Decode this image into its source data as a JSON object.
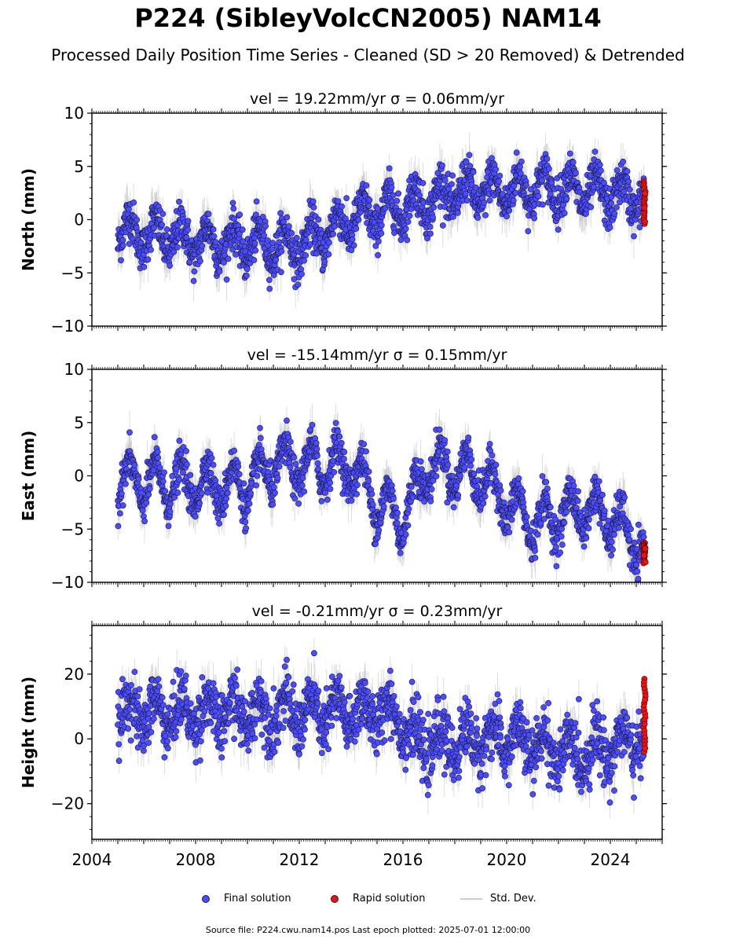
{
  "title": "P224 (SibleyVolcCN2005) NAM14",
  "subtitle": "Processed Daily Position Time Series - Cleaned (SD > 20 Removed) & Detrended",
  "legend": {
    "final": "Final solution",
    "rapid": "Rapid solution",
    "std": "Std. Dev."
  },
  "source": "Source file: P224.cwu.nam14.pos  Last epoch plotted: 2025-07-01 12:00:00",
  "colors": {
    "final": "#4b4bff",
    "rapid": "#ee1111",
    "std_dev": "#bbbbbb",
    "edge": "#1a1a3a"
  },
  "chart_data": [
    {
      "type": "scatter",
      "panel_title": "vel = 19.22mm/yr   σ = 0.06mm/yr",
      "ylabel": "North (mm)",
      "xlim": [
        2004,
        2026
      ],
      "ylim": [
        -10,
        10
      ],
      "yticks": [
        -10,
        -5,
        0,
        5,
        10
      ],
      "data_start": 2005.0,
      "rapid_start": 2025.3,
      "rapid_end": 2025.5,
      "final_trend": [
        [
          2005.0,
          -1.0
        ],
        [
          2008.0,
          -2.0
        ],
        [
          2012.0,
          -2.5
        ],
        [
          2014.0,
          0.0
        ],
        [
          2016.0,
          1.2
        ],
        [
          2018.0,
          2.5
        ],
        [
          2022.0,
          3.0
        ],
        [
          2025.3,
          2.0
        ]
      ],
      "final_seasonal_amp": 1.5,
      "final_noise": 1.0,
      "rapid_range": [
        -0.4,
        3.6
      ],
      "std_dev_typical": 1.5
    },
    {
      "type": "scatter",
      "panel_title": "vel = -15.14mm/yr   σ = 0.15mm/yr",
      "ylabel": "East (mm)",
      "xlim": [
        2004,
        2026
      ],
      "ylim": [
        -10,
        10
      ],
      "yticks": [
        -10,
        -5,
        0,
        5,
        10
      ],
      "data_start": 2005.0,
      "rapid_start": 2025.3,
      "rapid_end": 2025.5,
      "final_trend": [
        [
          2005.0,
          -0.5
        ],
        [
          2010.0,
          -1.0
        ],
        [
          2011.0,
          1.0
        ],
        [
          2014.0,
          1.0
        ],
        [
          2015.0,
          -2.5
        ],
        [
          2016.0,
          -4.0
        ],
        [
          2017.0,
          1.0
        ],
        [
          2019.0,
          0.0
        ],
        [
          2020.0,
          -2.5
        ],
        [
          2021.0,
          -4.5
        ],
        [
          2023.0,
          -3.0
        ],
        [
          2024.0,
          -4.0
        ],
        [
          2025.3,
          -7.0
        ]
      ],
      "final_seasonal_amp": 2.0,
      "final_noise": 0.9,
      "rapid_range": [
        -8.2,
        -6.3
      ],
      "std_dev_typical": 1.5
    },
    {
      "type": "scatter",
      "panel_title": "vel = -0.21mm/yr   σ = 0.23mm/yr",
      "ylabel": "Height (mm)",
      "xlim": [
        2004,
        2026
      ],
      "ylim": [
        -31,
        35
      ],
      "yticks": [
        -20,
        0,
        20
      ],
      "xticks": [
        2004,
        2008,
        2012,
        2016,
        2020,
        2024
      ],
      "data_start": 2005.0,
      "rapid_start": 2025.3,
      "rapid_end": 2025.5,
      "final_trend": [
        [
          2005.0,
          8.0
        ],
        [
          2015.8,
          8.0
        ],
        [
          2016.5,
          -2.0
        ],
        [
          2020.0,
          0.0
        ],
        [
          2022.5,
          -5.0
        ],
        [
          2025.3,
          0.0
        ]
      ],
      "final_seasonal_amp": 5.0,
      "final_noise": 4.5,
      "rapid_range": [
        -4.0,
        18.5
      ],
      "std_dev_typical": 5.0
    }
  ]
}
